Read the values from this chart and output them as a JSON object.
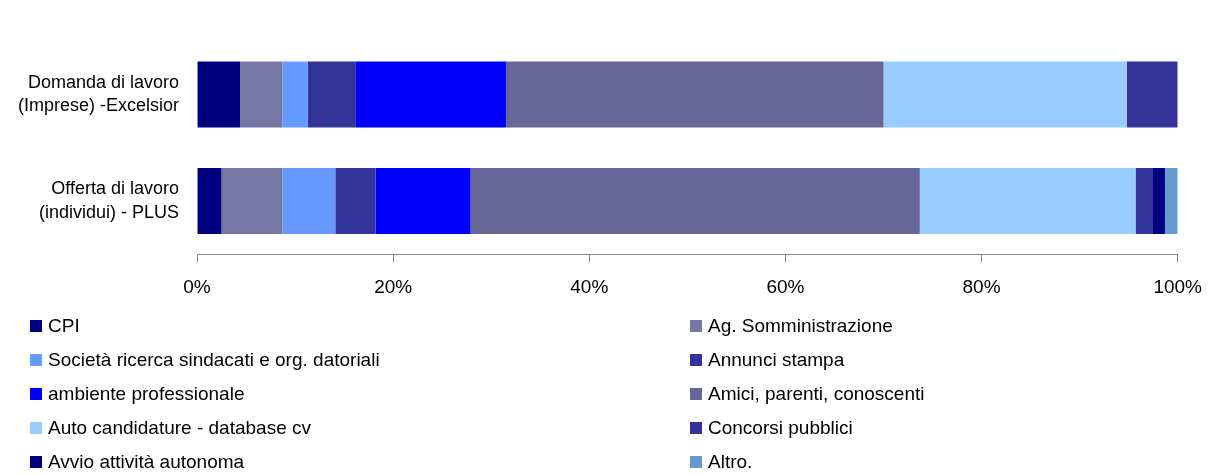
{
  "chart_data": {
    "type": "bar",
    "orientation": "horizontal",
    "stacked": true,
    "categories": [
      "Domanda di lavoro\n(Imprese) -Excelsior",
      "Offerta di lavoro\n(individui) - PLUS"
    ],
    "series": [
      {
        "name": "CPI",
        "color": "#000080",
        "values": [
          4.4,
          2.5
        ]
      },
      {
        "name": "Ag. Somministrazione",
        "color": "#7777a6",
        "values": [
          4.3,
          6.2
        ]
      },
      {
        "name": "Società ricerca sindacati e org. datoriali",
        "color": "#6699ff",
        "values": [
          2.6,
          5.4
        ]
      },
      {
        "name": "Annunci stampa",
        "color": "#333399",
        "values": [
          4.9,
          4.1
        ]
      },
      {
        "name": "ambiente professionale",
        "color": "#0000ff",
        "values": [
          15.3,
          9.7
        ]
      },
      {
        "name": "Amici, parenti, conoscenti",
        "color": "#666699",
        "values": [
          38.5,
          45.8
        ]
      },
      {
        "name": "Auto candidature - database cv",
        "color": "#99ccff",
        "values": [
          24.8,
          22.0
        ]
      },
      {
        "name": "Concorsi pubblici",
        "color": "#333399",
        "values": [
          5.2,
          1.7
        ]
      },
      {
        "name": "Avvio attività autonoma",
        "color": "#000080",
        "values": [
          0,
          1.3
        ]
      },
      {
        "name": "Altro.",
        "color": "#6699cc",
        "values": [
          0,
          1.3
        ]
      }
    ],
    "xlim": [
      0,
      100
    ],
    "xticks": [
      {
        "value": 0,
        "label": "0%"
      },
      {
        "value": 20,
        "label": "20%"
      },
      {
        "value": 40,
        "label": "40%"
      },
      {
        "value": 60,
        "label": "60%"
      },
      {
        "value": 80,
        "label": "80%"
      },
      {
        "value": 100,
        "label": "100%"
      }
    ],
    "grid": false,
    "legend": "bottom"
  }
}
